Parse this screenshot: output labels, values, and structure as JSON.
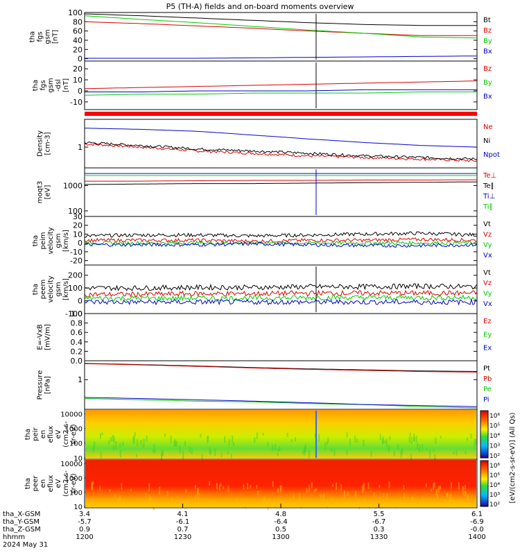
{
  "title": "P5 (TH-A) fields and on-board moments overview",
  "colors": {
    "black": "#000000",
    "red": "#dd0000",
    "green": "#00cc00",
    "blue": "#0000cc",
    "strip": "#ff0000"
  },
  "chart_data": [
    {
      "type": "line",
      "panel": "fgs_gsm",
      "ylabel": [
        "tha",
        "fgs",
        "gsm",
        "[nT]"
      ],
      "ylim": [
        -5,
        100
      ],
      "yticks": [
        "100",
        "80",
        "60",
        "40",
        "20",
        "0"
      ],
      "series": [
        {
          "name": "Bt",
          "color": "black",
          "values": [
            97,
            93,
            88,
            83,
            78,
            74,
            72,
            72
          ]
        },
        {
          "name": "Bz",
          "color": "red",
          "values": [
            80,
            76,
            71,
            66,
            60,
            55,
            50,
            50
          ]
        },
        {
          "name": "By",
          "color": "green",
          "values": [
            93,
            85,
            78,
            70,
            62,
            55,
            47,
            45
          ]
        },
        {
          "name": "Bx",
          "color": "blue",
          "values": [
            1,
            1,
            1,
            2,
            3,
            4,
            5,
            6
          ]
        }
      ]
    },
    {
      "type": "line",
      "panel": "fgs_dsl",
      "ylabel": [
        "tha",
        "fgs",
        "gsm",
        "-dsl",
        "[nT]"
      ],
      "ylim": [
        -17,
        27
      ],
      "yticks": [
        "20",
        "10",
        "0",
        "-10"
      ],
      "series": [
        {
          "name": "Bz",
          "color": "red",
          "values": [
            2,
            3,
            4,
            5,
            6,
            7,
            8,
            9
          ]
        },
        {
          "name": "By",
          "color": "green",
          "values": [
            -4,
            -3,
            -3,
            -2,
            -2,
            -2,
            -1,
            -1
          ]
        },
        {
          "name": "Bx",
          "color": "blue",
          "values": [
            -1,
            -1,
            0,
            0,
            0,
            1,
            1,
            1
          ]
        }
      ]
    },
    {
      "type": "line",
      "panel": "density",
      "ylabel": [
        "Density",
        "[cm-3]"
      ],
      "log": true,
      "yticks": [
        "1"
      ],
      "series": [
        {
          "name": "Ne",
          "color": "red",
          "values": [
            1.2,
            1.0,
            0.8,
            0.7,
            0.6,
            0.55,
            0.5,
            0.45
          ]
        },
        {
          "name": "Ni",
          "color": "black",
          "values": [
            1.3,
            1.1,
            0.9,
            0.8,
            0.7,
            0.6,
            0.55,
            0.5
          ]
        },
        {
          "name": "Npot",
          "color": "blue",
          "values": [
            3.0,
            2.8,
            2.5,
            2.0,
            1.6,
            1.3,
            1.1,
            1.0
          ]
        }
      ]
    },
    {
      "type": "line",
      "panel": "temperature",
      "ylabel": [
        "moqt3",
        "[eV]"
      ],
      "log": true,
      "yticks": [
        "1000",
        "100"
      ],
      "series": [
        {
          "name": "Te⊥",
          "color": "red",
          "values": [
            1500,
            1500,
            1550,
            1600,
            1600,
            1650,
            1650,
            1700
          ]
        },
        {
          "name": "Te∥",
          "color": "black",
          "values": [
            1100,
            1150,
            1200,
            1200,
            1250,
            1300,
            1350,
            1400
          ]
        },
        {
          "name": "Ti⊥",
          "color": "blue",
          "values": [
            3000,
            3000,
            3000,
            3000,
            3000,
            3000,
            3000,
            3000
          ]
        },
        {
          "name": "Ti∥",
          "color": "green",
          "values": [
            2500,
            2500,
            2500,
            2500,
            2500,
            2500,
            2500,
            2500
          ]
        }
      ]
    },
    {
      "type": "line",
      "panel": "peim_velocity",
      "ylabel": [
        "tha",
        "peim",
        "velocity",
        "gsm",
        "[km/s]"
      ],
      "ylim": [
        -25,
        30
      ],
      "yticks": [
        "30",
        "20",
        "10",
        "0",
        "-10",
        "-20"
      ],
      "series": [
        {
          "name": "Vt",
          "color": "black",
          "values": [
            8,
            9,
            9,
            8,
            9,
            10,
            11,
            9
          ]
        },
        {
          "name": "Vz",
          "color": "red",
          "values": [
            3,
            3,
            3,
            2,
            3,
            3,
            4,
            3
          ]
        },
        {
          "name": "Vy",
          "color": "green",
          "values": [
            0,
            0,
            0,
            0,
            0,
            0,
            0,
            0
          ]
        },
        {
          "name": "Vx",
          "color": "blue",
          "values": [
            -2,
            -2,
            -2,
            -1,
            -2,
            -3,
            -3,
            -2
          ]
        }
      ]
    },
    {
      "type": "line",
      "panel": "peem_velocity",
      "ylabel": [
        "tha",
        "peem",
        "velocity",
        "gsm",
        "[km/s]"
      ],
      "ylim": [
        -100,
        280
      ],
      "yticks": [
        "200",
        "100",
        "0",
        "-100"
      ],
      "series": [
        {
          "name": "Vt",
          "color": "black",
          "values": [
            100,
            100,
            105,
            105,
            110,
            110,
            115,
            110
          ]
        },
        {
          "name": "Vz",
          "color": "red",
          "values": [
            50,
            50,
            55,
            55,
            60,
            60,
            60,
            60
          ]
        },
        {
          "name": "Vy",
          "color": "green",
          "values": [
            20,
            20,
            20,
            20,
            25,
            25,
            25,
            25
          ]
        },
        {
          "name": "Vx",
          "color": "blue",
          "values": [
            -10,
            -10,
            -10,
            -10,
            -10,
            -10,
            -10,
            -10
          ]
        }
      ]
    },
    {
      "type": "line",
      "panel": "efield",
      "ylabel": [
        "E=-VxB",
        "[mV/m]"
      ],
      "ylim": [
        0,
        1
      ],
      "yticks": [
        "1.0",
        "0.8",
        "0.6",
        "0.4",
        "0.2",
        "0.0"
      ],
      "series": [
        {
          "name": "Ez",
          "color": "red",
          "values": []
        },
        {
          "name": "Ey",
          "color": "green",
          "values": []
        },
        {
          "name": "Ex",
          "color": "blue",
          "values": []
        }
      ]
    },
    {
      "type": "line",
      "panel": "pressure",
      "ylabel": [
        "Pressure",
        "[nPa]"
      ],
      "log": true,
      "yticks": [
        "1"
      ],
      "series": [
        {
          "name": "Pt",
          "color": "black",
          "values": [
            4.0,
            3.6,
            3.2,
            2.8,
            2.5,
            2.3,
            2.1,
            2.0
          ]
        },
        {
          "name": "Pb",
          "color": "red",
          "values": [
            3.9,
            3.5,
            3.1,
            2.7,
            2.4,
            2.2,
            2.0,
            1.9
          ]
        },
        {
          "name": "Pe",
          "color": "green",
          "values": [
            0.2,
            0.18,
            0.16,
            0.15,
            0.13,
            0.12,
            0.1,
            0.09
          ]
        },
        {
          "name": "Pi",
          "color": "blue",
          "values": [
            0.22,
            0.2,
            0.18,
            0.16,
            0.14,
            0.12,
            0.11,
            0.1
          ]
        }
      ]
    },
    {
      "type": "heatmap",
      "panel": "peir_en",
      "ylabel": [
        "tha",
        "peir",
        "en",
        "eflux",
        "eV",
        "(cm2-s-",
        "sr-eV)"
      ],
      "yticks": [
        "10000",
        "1000",
        "100",
        "10"
      ],
      "log": true
    },
    {
      "type": "heatmap",
      "panel": "peer_en",
      "ylabel": [
        "tha",
        "peer",
        "en",
        "eflux",
        "eV",
        "(cm2-s-",
        "sr-eV)"
      ],
      "yticks": [
        "10000",
        "1000",
        "100",
        "10"
      ],
      "log": true
    }
  ],
  "colorbar": {
    "label": "[eV/(cm2-s-sr-eV)] (All Qs)",
    "ticks": [
      "10⁶",
      "10⁵",
      "10⁴",
      "10³",
      "10²"
    ],
    "ticks2": [
      "10⁶",
      "10⁵",
      "10⁴",
      "10³",
      "10²"
    ]
  },
  "xaxis": {
    "rows": [
      {
        "label": "tha_X-GSM",
        "values": [
          "3.4",
          "4.1",
          "4.8",
          "5.5",
          "6.1"
        ]
      },
      {
        "label": "tha_Y-GSM",
        "values": [
          "-5.7",
          "-6.1",
          "-6.4",
          "-6.7",
          "-6.9"
        ]
      },
      {
        "label": "tha_Z-GSM",
        "values": [
          "0.9",
          "0.7",
          "0.5",
          "0.3",
          "-0.0"
        ]
      },
      {
        "label": "hhmm",
        "values": [
          "1200",
          "1230",
          "1300",
          "1330",
          "1400"
        ]
      },
      {
        "label": "2024 May 31",
        "values": []
      }
    ]
  }
}
